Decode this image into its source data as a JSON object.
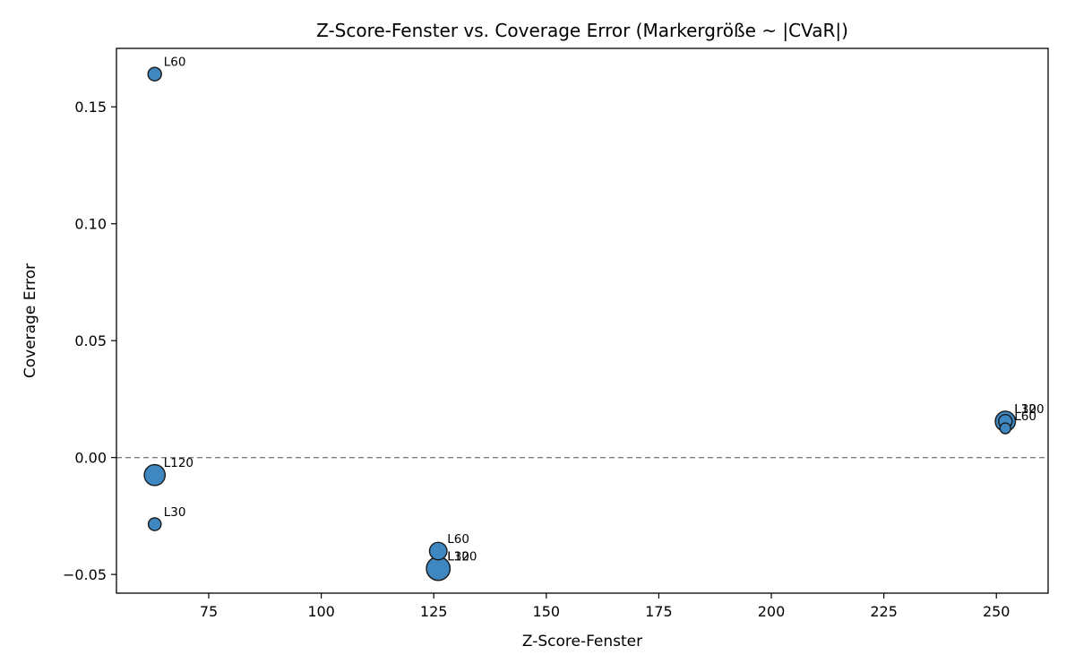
{
  "chart_data": {
    "type": "scatter",
    "title": "Z-Score-Fenster vs. Coverage Error (Markergröße ~ |CVaR|)",
    "xlabel": "Z-Score-Fenster",
    "ylabel": "Coverage Error",
    "xlim": [
      54.5,
      261.5
    ],
    "ylim": [
      -0.058,
      0.175
    ],
    "xticks": [
      75,
      100,
      125,
      150,
      175,
      200,
      225,
      250
    ],
    "xtick_labels": [
      "75",
      "100",
      "125",
      "150",
      "175",
      "200",
      "225",
      "250"
    ],
    "yticks": [
      -0.05,
      0.0,
      0.05,
      0.1,
      0.15
    ],
    "ytick_labels": [
      "−0.05",
      "0.00",
      "0.05",
      "0.10",
      "0.15"
    ],
    "reference_line": {
      "y": 0.0,
      "style": "dashed",
      "color": "#808080"
    },
    "grid": false,
    "marker_color": "#3f87c0",
    "marker_edge_color": "#1a1a1a",
    "points": [
      {
        "x": 63,
        "y": 0.164,
        "label": "L60",
        "size": 1.0
      },
      {
        "x": 63,
        "y": -0.0075,
        "label": "L120",
        "size": 1.55
      },
      {
        "x": 63,
        "y": -0.0285,
        "label": "L30",
        "size": 0.95
      },
      {
        "x": 126,
        "y": -0.04,
        "label": "L60",
        "size": 1.3
      },
      {
        "x": 126,
        "y": -0.0475,
        "label": "L120",
        "size": 1.75
      },
      {
        "x": 126,
        "y": -0.0475,
        "label": "L30",
        "size": 1.75
      },
      {
        "x": 252,
        "y": 0.0125,
        "label": "L60",
        "size": 0.8
      },
      {
        "x": 252,
        "y": 0.0155,
        "label": "L30",
        "size": 1.5
      },
      {
        "x": 252,
        "y": 0.0155,
        "label": "L120",
        "size": 1.0
      }
    ]
  }
}
